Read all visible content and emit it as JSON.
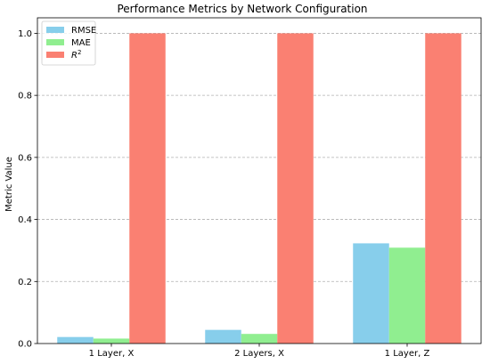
{
  "chart_data": {
    "type": "bar",
    "title": "Performance Metrics by Network Configuration",
    "xlabel": "",
    "ylabel": "Metric Value",
    "categories": [
      "1 Layer, X",
      "2 Layers, X",
      "1 Layer, Z"
    ],
    "series": [
      {
        "name": "RMSE",
        "legend_label": "RMSE",
        "color": "#87ceeb",
        "values": [
          0.021,
          0.044,
          0.323
        ]
      },
      {
        "name": "MAE",
        "legend_label": "MAE",
        "color": "#90ee90",
        "values": [
          0.016,
          0.031,
          0.309
        ]
      },
      {
        "name": "R2",
        "legend_label": "R",
        "legend_sup": "2",
        "color": "#fa8072",
        "values": [
          1.0,
          1.0,
          1.0
        ]
      }
    ],
    "ylim": [
      0,
      1.05
    ],
    "yticks": [
      "0.0",
      "0.2",
      "0.4",
      "0.6",
      "0.8",
      "1.0"
    ],
    "grid": "y-dashed",
    "legend_position": "top-left"
  }
}
